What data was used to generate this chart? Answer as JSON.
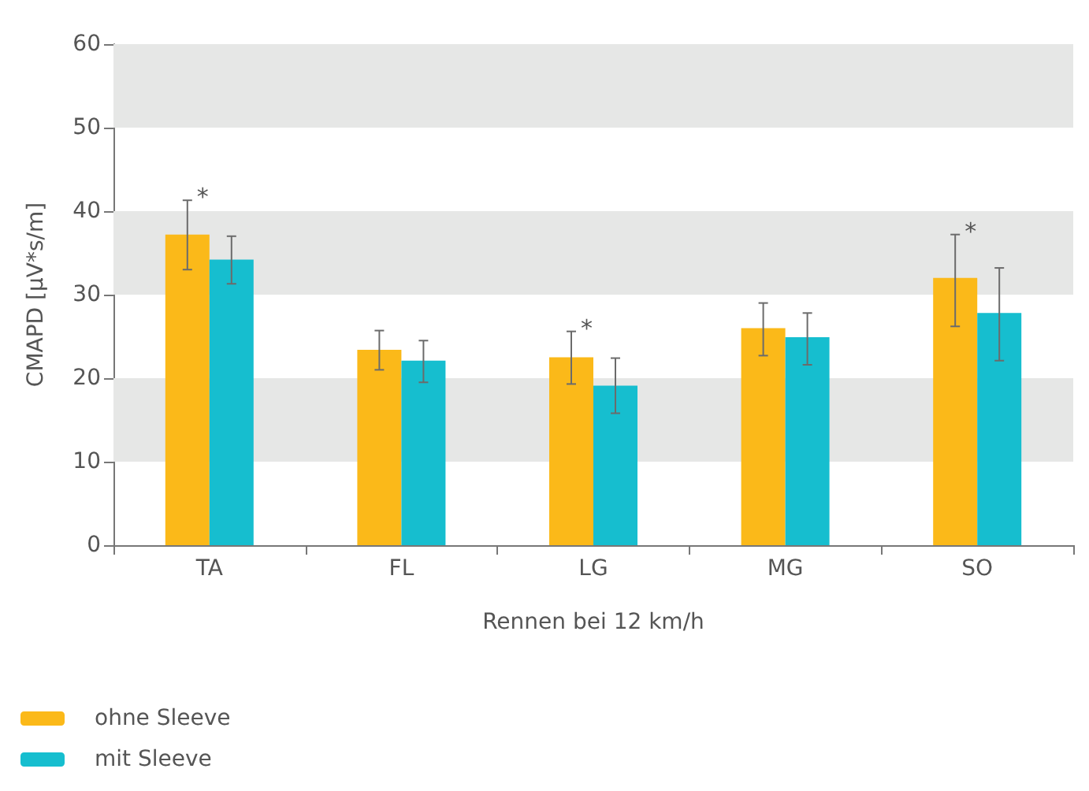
{
  "chart_data": {
    "type": "bar",
    "xlabel": "Rennen bei 12 km/h",
    "ylabel": "CMAPD [µV*s/m]",
    "categories": [
      "TA",
      "FL",
      "LG",
      "MG",
      "SO"
    ],
    "series": [
      {
        "name": "ohne Sleeve",
        "color": "#fbb919",
        "values": [
          37.2,
          23.4,
          22.5,
          26.0,
          32.0
        ],
        "errors": [
          [
            33.0,
            41.3
          ],
          [
            21.0,
            25.7
          ],
          [
            19.3,
            25.6
          ],
          [
            22.7,
            29.0
          ],
          [
            26.2,
            37.2
          ]
        ]
      },
      {
        "name": "mit Sleeve",
        "color": "#16becf",
        "values": [
          34.2,
          22.1,
          19.1,
          24.9,
          27.8
        ],
        "errors": [
          [
            31.3,
            37.0
          ],
          [
            19.5,
            24.5
          ],
          [
            15.8,
            22.4
          ],
          [
            21.6,
            27.8
          ],
          [
            22.1,
            33.2
          ]
        ]
      }
    ],
    "ylim": [
      0,
      60
    ],
    "yticks": [
      0,
      10,
      20,
      30,
      40,
      50,
      60
    ],
    "grid": false,
    "legend": "bottom left",
    "bands": [
      {
        "axis": "y",
        "from": 10,
        "to": 20,
        "color": "#e6e7e6"
      },
      {
        "axis": "y",
        "from": 30,
        "to": 40,
        "color": "#e6e7e6"
      },
      {
        "axis": "y",
        "from": 50,
        "to": 60,
        "color": "#e6e7e6"
      }
    ],
    "annotations": [
      {
        "text": "*",
        "x": "TA",
        "y": 37.2
      },
      {
        "text": "*",
        "x": "LG",
        "y": 22.5
      },
      {
        "text": "*",
        "x": "SO",
        "y": 32.0
      }
    ]
  }
}
